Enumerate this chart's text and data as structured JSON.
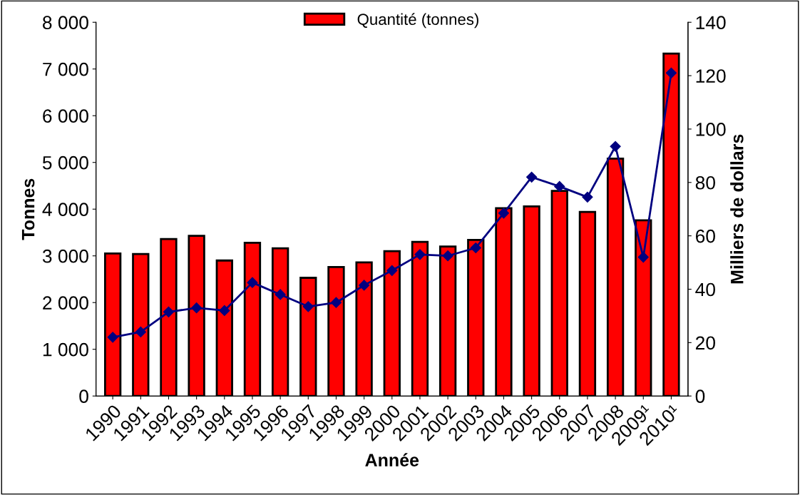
{
  "chart_data": {
    "type": "bar",
    "xlabel": "Année",
    "ylabel": "Tonnes",
    "y2label": "Milliers de dollars",
    "categories": [
      "1990",
      "1991",
      "1992",
      "1993",
      "1994",
      "1995",
      "1996",
      "1997",
      "1998",
      "1999",
      "2000",
      "2001",
      "2002",
      "2003",
      "2004",
      "2005",
      "2006",
      "2007",
      "2008",
      "2009¹",
      "2010¹"
    ],
    "series": [
      {
        "name": "Quantité (tonnes)",
        "color": "#ff0000",
        "values": [
          3050,
          3040,
          3360,
          3430,
          2900,
          3280,
          3160,
          2530,
          2760,
          2860,
          3100,
          3300,
          3200,
          3340,
          4020,
          4060,
          4390,
          3940,
          5080,
          3760,
          7330
        ]
      },
      {
        "type": "line",
        "axis": "y2",
        "color": "#000080",
        "marker": "diamond",
        "values": [
          22,
          24,
          31.5,
          33,
          32,
          42.5,
          38,
          33.5,
          35,
          41.5,
          47,
          53,
          52.5,
          55.5,
          68.5,
          82,
          78.5,
          74.5,
          93.5,
          52,
          121
        ]
      }
    ],
    "ylim": [
      0,
      8000
    ],
    "yticks": [
      {
        "value": 0,
        "label": "0"
      },
      {
        "value": 1000,
        "label": "1 000"
      },
      {
        "value": 2000,
        "label": "2 000"
      },
      {
        "value": 3000,
        "label": "3 000"
      },
      {
        "value": 4000,
        "label": "4 000"
      },
      {
        "value": 5000,
        "label": "5 000"
      },
      {
        "value": 6000,
        "label": "6 000"
      },
      {
        "value": 7000,
        "label": "7 000"
      },
      {
        "value": 8000,
        "label": "8 000"
      }
    ],
    "y2lim": [
      0,
      140
    ],
    "y2ticks": [
      0,
      20,
      40,
      60,
      80,
      100,
      120,
      140
    ],
    "legend": "top",
    "grid": false
  }
}
